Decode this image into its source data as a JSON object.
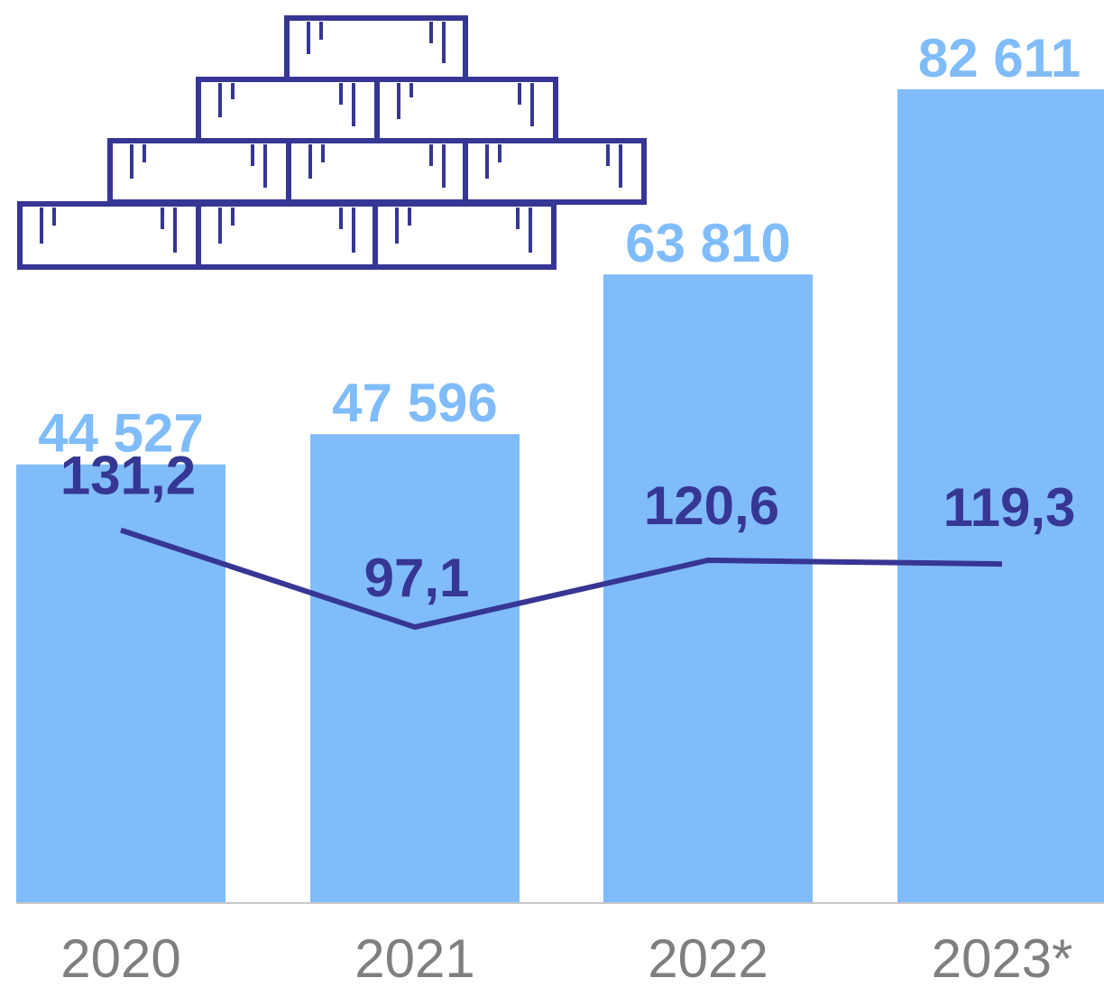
{
  "chart_data": {
    "type": "bar",
    "categories": [
      "2020",
      "2021",
      "2022",
      "2023*"
    ],
    "series": [
      {
        "type": "bar",
        "values": [
          44527,
          47596,
          63810,
          82611
        ],
        "labels": [
          "44 527",
          "47 596",
          "63 810",
          "82 611"
        ]
      },
      {
        "type": "line",
        "values": [
          131.2,
          97.1,
          120.6,
          119.3
        ],
        "labels": [
          "131,2",
          "97,1",
          "120,6",
          "119,3"
        ]
      }
    ],
    "ylim": [
      0,
      88000
    ],
    "line_ylim": [
      0,
      305
    ],
    "grid": false,
    "legend": "none"
  },
  "colors": {
    "bar": "#80bcfa",
    "bar_label": "#80bcfa",
    "line": "#363694",
    "line_label": "#363694",
    "tick_label": "#7f7f7f",
    "axis": "#c8c8c8"
  },
  "decoration": {
    "icon": "brick-pyramid-icon"
  }
}
